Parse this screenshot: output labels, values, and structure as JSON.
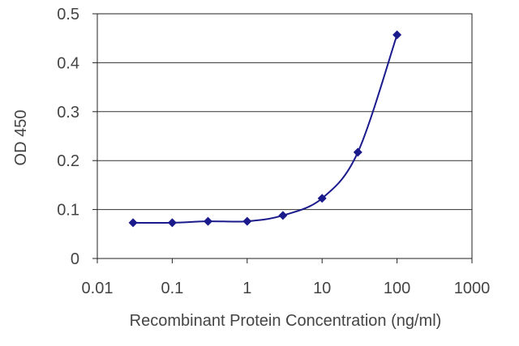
{
  "chart_data": {
    "type": "scatter",
    "title": "",
    "xlabel": "Recombinant Protein Concentration (ng/ml)",
    "ylabel": "OD 450",
    "x_scale": "log",
    "xlim": [
      0.01,
      1000
    ],
    "ylim": [
      0,
      0.5
    ],
    "x_ticks": [
      0.01,
      0.1,
      1,
      10,
      100,
      1000
    ],
    "x_tick_labels": [
      "0.01",
      "0.1",
      "1",
      "10",
      "100",
      "1000"
    ],
    "y_ticks": [
      0,
      0.1,
      0.2,
      0.3,
      0.4,
      0.5
    ],
    "y_tick_labels": [
      "0",
      "0.1",
      "0.2",
      "0.3",
      "0.4",
      "0.5"
    ],
    "grid": "horizontal",
    "legend": "none",
    "series": [
      {
        "color": "#1a1a8c",
        "marker": "diamond",
        "fit_line": "smooth",
        "x": [
          0.03,
          0.1,
          0.3,
          1,
          3,
          10,
          30,
          100
        ],
        "y": [
          0.073,
          0.073,
          0.076,
          0.076,
          0.088,
          0.123,
          0.217,
          0.457
        ]
      }
    ]
  }
}
